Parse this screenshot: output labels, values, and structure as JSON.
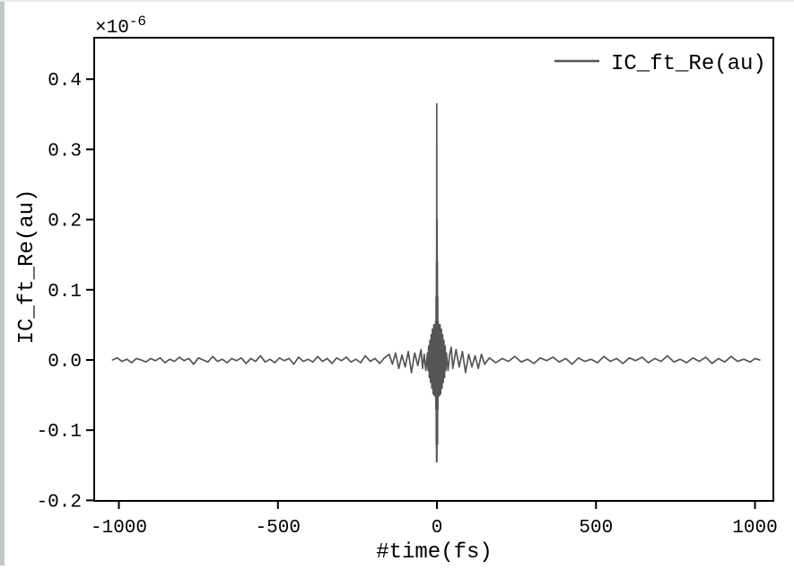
{
  "window": {
    "background_color": "#ffffff",
    "left_border_color": "#c2c6c6"
  },
  "chart_data": {
    "type": "line",
    "title": "",
    "xlabel": "#time(fs)",
    "ylabel": "IC_ft_Re(au)",
    "y_offset_text": {
      "base": "×10",
      "exponent": "-6"
    },
    "x_unit": "fs",
    "y_unit": "au × 1e-6",
    "xlim": [
      -1070,
      1060
    ],
    "ylim": [
      -0.2,
      0.46
    ],
    "grid": false,
    "frame_color": "#000000",
    "x_ticks": [
      -1000,
      -500,
      0,
      500,
      1000
    ],
    "x_tick_labels": [
      "-1000",
      "-500",
      "0",
      "500",
      "1000"
    ],
    "y_ticks": [
      0.4,
      0.3,
      0.2,
      0.1,
      0.0,
      -0.1,
      -0.2
    ],
    "y_tick_labels": [
      "0.4",
      "0.3",
      "0.2",
      "0.1",
      "0.0",
      "-0.1",
      "-0.2"
    ],
    "legend": {
      "position": "upper right",
      "frame": false,
      "entries": [
        {
          "label": "IC_ft_Re(au)",
          "color": "#555555"
        }
      ]
    },
    "series": [
      {
        "name": "IC_ft_Re(au)",
        "color": "#555555",
        "y_scale": "1e-6",
        "peak_value": 0.365,
        "min_value": -0.145,
        "points": [
          [
            -1020,
            0.0
          ],
          [
            -1005,
            0.003
          ],
          [
            -990,
            -0.002
          ],
          [
            -975,
            0.001
          ],
          [
            -960,
            -0.004
          ],
          [
            -945,
            0.002
          ],
          [
            -930,
            0.0
          ],
          [
            -915,
            -0.003
          ],
          [
            -900,
            0.002
          ],
          [
            -885,
            -0.001
          ],
          [
            -870,
            0.003
          ],
          [
            -855,
            -0.004
          ],
          [
            -840,
            0.001
          ],
          [
            -825,
            -0.002
          ],
          [
            -810,
            0.004
          ],
          [
            -795,
            -0.001
          ],
          [
            -780,
            0.002
          ],
          [
            -765,
            -0.006
          ],
          [
            -750,
            0.003
          ],
          [
            -735,
            0.0
          ],
          [
            -720,
            -0.003
          ],
          [
            -705,
            0.005
          ],
          [
            -690,
            -0.002
          ],
          [
            -675,
            0.001
          ],
          [
            -660,
            -0.004
          ],
          [
            -645,
            0.002
          ],
          [
            -630,
            -0.001
          ],
          [
            -615,
            0.003
          ],
          [
            -600,
            -0.005
          ],
          [
            -585,
            0.002
          ],
          [
            -570,
            -0.002
          ],
          [
            -555,
            0.006
          ],
          [
            -540,
            -0.003
          ],
          [
            -525,
            0.001
          ],
          [
            -510,
            -0.004
          ],
          [
            -495,
            0.003
          ],
          [
            -480,
            -0.001
          ],
          [
            -465,
            0.002
          ],
          [
            -450,
            -0.006
          ],
          [
            -435,
            0.004
          ],
          [
            -420,
            -0.002
          ],
          [
            -405,
            0.001
          ],
          [
            -390,
            -0.003
          ],
          [
            -375,
            0.005
          ],
          [
            -360,
            -0.002
          ],
          [
            -345,
            0.002
          ],
          [
            -330,
            -0.005
          ],
          [
            -315,
            0.003
          ],
          [
            -300,
            -0.001
          ],
          [
            -285,
            0.004
          ],
          [
            -270,
            -0.003
          ],
          [
            -255,
            0.001
          ],
          [
            -240,
            -0.004
          ],
          [
            -225,
            0.006
          ],
          [
            -210,
            -0.002
          ],
          [
            -195,
            0.002
          ],
          [
            -180,
            -0.005
          ],
          [
            -165,
            0.003
          ],
          [
            -150,
            0.008
          ],
          [
            -140,
            -0.006
          ],
          [
            -130,
            0.01
          ],
          [
            -120,
            -0.012
          ],
          [
            -110,
            0.007
          ],
          [
            -100,
            -0.01
          ],
          [
            -90,
            0.012
          ],
          [
            -80,
            -0.018
          ],
          [
            -70,
            0.01
          ],
          [
            -60,
            -0.008
          ],
          [
            -50,
            0.015
          ],
          [
            -45,
            -0.012
          ],
          [
            -40,
            0.008
          ],
          [
            -35,
            -0.015
          ],
          [
            -30,
            0.01
          ],
          [
            -28,
            -0.015
          ],
          [
            -26,
            0.02
          ],
          [
            -24,
            -0.025
          ],
          [
            -22,
            0.028
          ],
          [
            -20,
            -0.032
          ],
          [
            -18,
            0.036
          ],
          [
            -16,
            -0.04
          ],
          [
            -14,
            0.044
          ],
          [
            -12,
            -0.048
          ],
          [
            -10,
            0.05
          ],
          [
            -9,
            -0.05
          ],
          [
            -8,
            0.05
          ],
          [
            -7,
            -0.05
          ],
          [
            -6,
            0.05
          ],
          [
            -5,
            -0.052
          ],
          [
            -4,
            0.055
          ],
          [
            -3,
            -0.07
          ],
          [
            -2.5,
            0.09
          ],
          [
            -2,
            -0.12
          ],
          [
            -1.5,
            0.14
          ],
          [
            -1,
            -0.145
          ],
          [
            -0.5,
            0.365
          ],
          [
            0,
            -0.145
          ],
          [
            0.5,
            0.2
          ],
          [
            1,
            -0.1
          ],
          [
            1.5,
            0.14
          ],
          [
            2,
            -0.12
          ],
          [
            2.5,
            0.09
          ],
          [
            3,
            -0.07
          ],
          [
            4,
            0.055
          ],
          [
            5,
            -0.052
          ],
          [
            6,
            0.05
          ],
          [
            7,
            -0.05
          ],
          [
            8,
            0.05
          ],
          [
            9,
            -0.05
          ],
          [
            10,
            0.05
          ],
          [
            12,
            -0.048
          ],
          [
            14,
            0.044
          ],
          [
            16,
            -0.04
          ],
          [
            18,
            0.036
          ],
          [
            20,
            -0.032
          ],
          [
            22,
            0.028
          ],
          [
            24,
            -0.025
          ],
          [
            26,
            0.02
          ],
          [
            28,
            -0.015
          ],
          [
            30,
            0.01
          ],
          [
            35,
            -0.015
          ],
          [
            40,
            0.008
          ],
          [
            45,
            0.018
          ],
          [
            50,
            -0.012
          ],
          [
            60,
            0.015
          ],
          [
            70,
            -0.01
          ],
          [
            80,
            0.012
          ],
          [
            90,
            -0.018
          ],
          [
            100,
            0.008
          ],
          [
            110,
            -0.01
          ],
          [
            120,
            0.006
          ],
          [
            130,
            -0.012
          ],
          [
            140,
            0.008
          ],
          [
            150,
            -0.006
          ],
          [
            165,
            0.003
          ],
          [
            185,
            -0.004
          ],
          [
            205,
            0.002
          ],
          [
            225,
            -0.002
          ],
          [
            245,
            0.005
          ],
          [
            265,
            -0.003
          ],
          [
            285,
            0.001
          ],
          [
            305,
            -0.005
          ],
          [
            325,
            0.003
          ],
          [
            345,
            -0.001
          ],
          [
            365,
            0.004
          ],
          [
            385,
            -0.003
          ],
          [
            405,
            0.002
          ],
          [
            425,
            -0.006
          ],
          [
            445,
            0.003
          ],
          [
            465,
            -0.002
          ],
          [
            485,
            0.001
          ],
          [
            505,
            -0.004
          ],
          [
            525,
            0.005
          ],
          [
            545,
            -0.002
          ],
          [
            565,
            0.002
          ],
          [
            585,
            -0.005
          ],
          [
            605,
            0.003
          ],
          [
            625,
            -0.001
          ],
          [
            645,
            0.004
          ],
          [
            665,
            -0.004
          ],
          [
            685,
            0.002
          ],
          [
            705,
            -0.002
          ],
          [
            725,
            0.006
          ],
          [
            745,
            -0.003
          ],
          [
            765,
            0.001
          ],
          [
            785,
            -0.004
          ],
          [
            805,
            0.003
          ],
          [
            825,
            -0.002
          ],
          [
            845,
            0.004
          ],
          [
            865,
            -0.005
          ],
          [
            885,
            0.002
          ],
          [
            905,
            -0.003
          ],
          [
            925,
            0.005
          ],
          [
            945,
            -0.002
          ],
          [
            965,
            0.001
          ],
          [
            985,
            -0.003
          ],
          [
            1000,
            0.002
          ],
          [
            1015,
            0.0
          ]
        ]
      }
    ]
  }
}
